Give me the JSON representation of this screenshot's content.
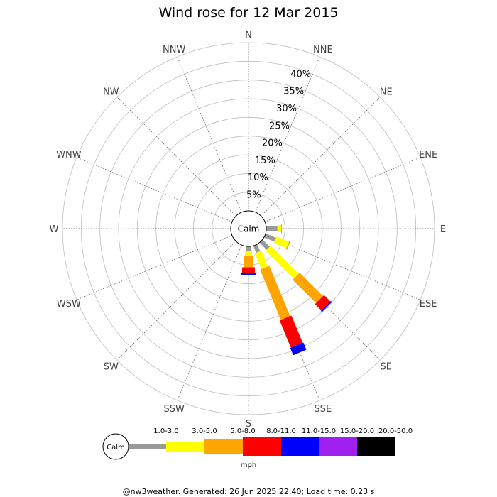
{
  "chart_data": {
    "type": "polar-bar",
    "title": "Wind rose for 12 Mar 2015",
    "directions": [
      "N",
      "NNE",
      "NE",
      "ENE",
      "E",
      "ESE",
      "SE",
      "SSE",
      "S",
      "SSW",
      "SW",
      "WSW",
      "W",
      "WNW",
      "NW",
      "NNW"
    ],
    "radial_ticks": [
      "5%",
      "10%",
      "15%",
      "20%",
      "25%",
      "30%",
      "35%",
      "40%"
    ],
    "radial_max": 45,
    "center_label": "Calm",
    "speed_bins": [
      {
        "label": "1.0-3.0",
        "color": "#999999"
      },
      {
        "label": "3.0-5.0",
        "color": "#ffff00"
      },
      {
        "label": "5.0-8.0",
        "color": "#ffa500"
      },
      {
        "label": "8.0-11.0",
        "color": "#ff0000"
      },
      {
        "label": "11.0-15.0",
        "color": "#0000ff"
      },
      {
        "label": "15.0-20.0",
        "color": "#a020f0"
      },
      {
        "label": "20.0-50.0",
        "color": "#000000"
      }
    ],
    "series": [
      {
        "direction": "E",
        "values": [
          3.0,
          1.0,
          0.2,
          0,
          0,
          0,
          0
        ]
      },
      {
        "direction": "ESE",
        "values": [
          3.0,
          3.6,
          0.3,
          0,
          0,
          0,
          0
        ]
      },
      {
        "direction": "SE",
        "values": [
          2.7,
          10.6,
          8.8,
          2.4,
          0.4,
          0,
          0
        ]
      },
      {
        "direction": "SSE",
        "values": [
          2.0,
          4.6,
          14.5,
          7.9,
          2.1,
          0,
          0
        ]
      },
      {
        "direction": "S",
        "values": [
          1.3,
          1.3,
          3.0,
          1.6,
          0.4,
          0,
          0
        ]
      }
    ],
    "legend_unit": "mph",
    "legend_calm_label": "Calm"
  },
  "footer": "@nw3weather. Generated: 26 Jun 2025 22:40; Load time: 0.23 s"
}
